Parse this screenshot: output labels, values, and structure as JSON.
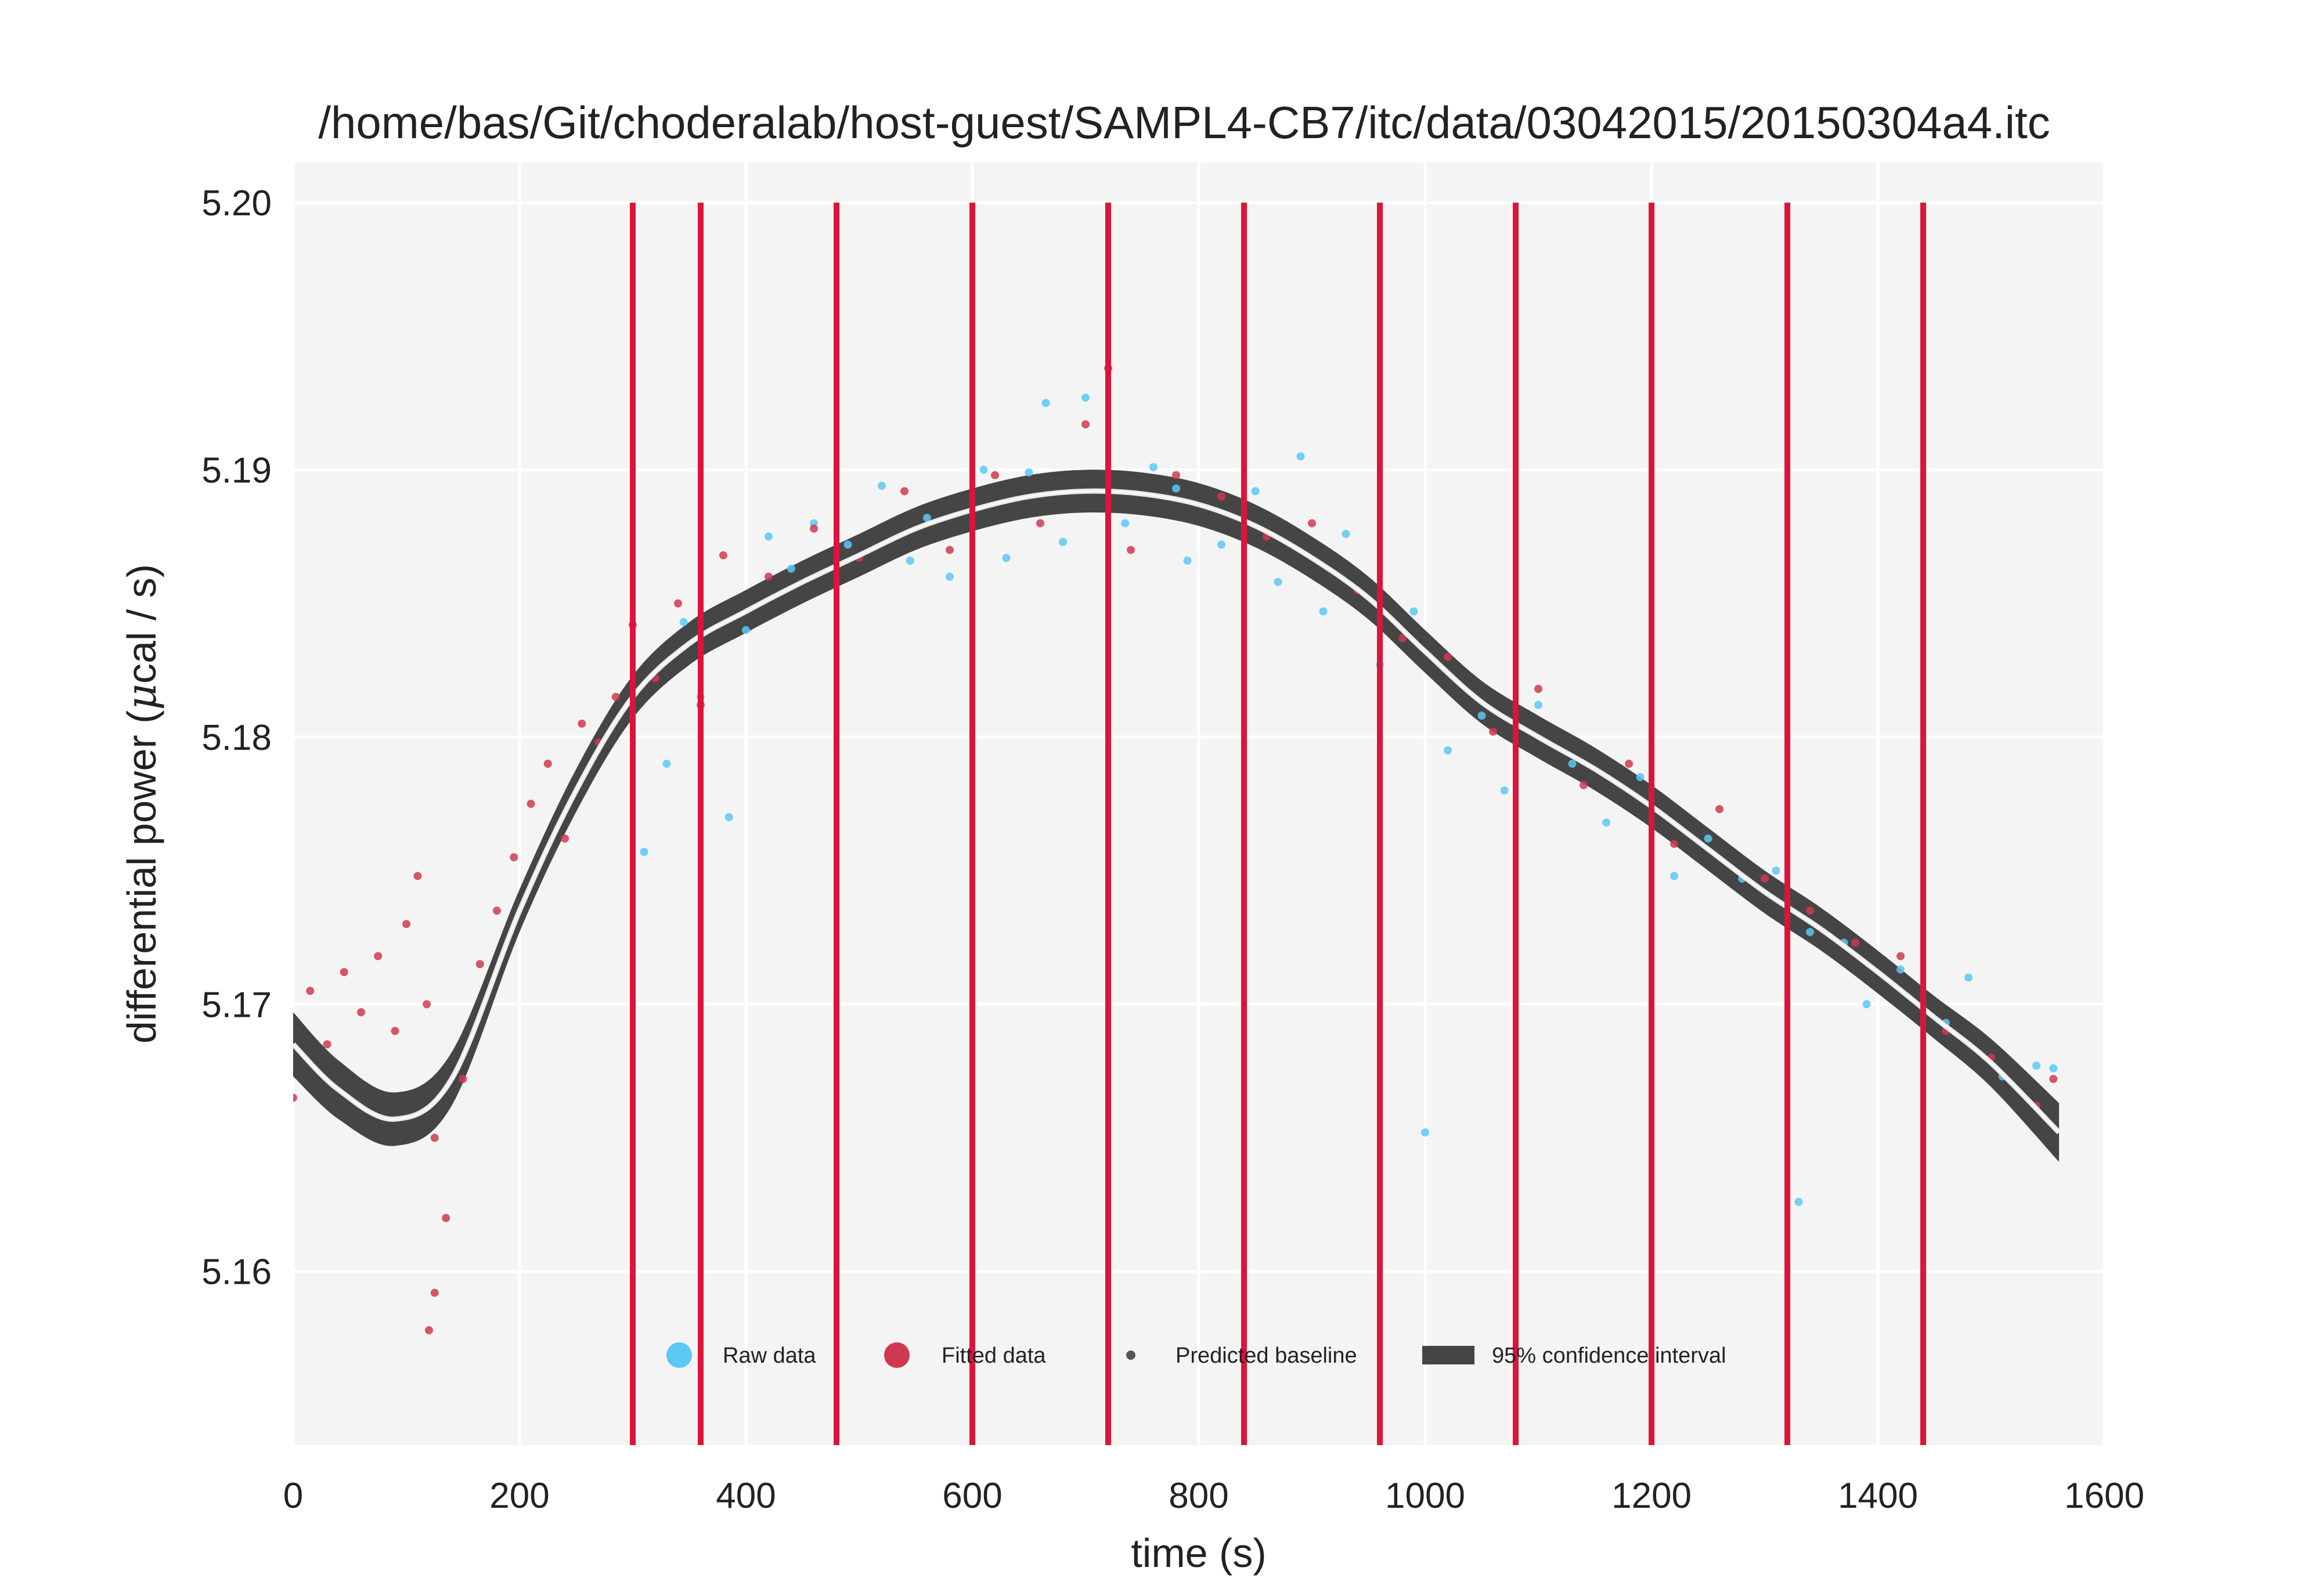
{
  "chart_data": {
    "type": "scatter",
    "title": "/home/bas/Git/choderalab/host-guest/SAMPL4-CB7/itc/data/03042015/20150304a4.itc",
    "xlabel": "time (s)",
    "ylabel_prefix": "differential power (",
    "ylabel_mu": "μ",
    "ylabel_suffix": "cal / s)",
    "xlim": [
      0,
      1600
    ],
    "ylim": [
      5.1535,
      5.2015
    ],
    "x_ticks": [
      "0",
      "200",
      "400",
      "600",
      "800",
      "1000",
      "1200",
      "1400",
      "1600"
    ],
    "y_ticks": [
      "5.16",
      "5.17",
      "5.18",
      "5.19",
      "5.20"
    ],
    "grid": true,
    "injection_times": [
      300,
      360,
      480,
      600,
      720,
      840,
      960,
      1080,
      1200,
      1320,
      1440
    ],
    "baseline": {
      "x": [
        0,
        40,
        90,
        140,
        200,
        250,
        300,
        350,
        400,
        450,
        500,
        550,
        600,
        650,
        700,
        750,
        800,
        850,
        900,
        950,
        1000,
        1050,
        1100,
        1150,
        1200,
        1250,
        1300,
        1350,
        1400,
        1450,
        1500,
        1560
      ],
      "y": [
        5.1685,
        5.1668,
        5.1657,
        5.1672,
        5.1735,
        5.178,
        5.1815,
        5.1835,
        5.1847,
        5.1858,
        5.1868,
        5.1878,
        5.1885,
        5.189,
        5.1892,
        5.1891,
        5.1887,
        5.1879,
        5.1867,
        5.1852,
        5.1832,
        5.1813,
        5.18,
        5.1788,
        5.1774,
        5.1758,
        5.1742,
        5.1728,
        5.1712,
        5.1695,
        5.1678,
        5.1652
      ],
      "ci_halfwidth": [
        0.0012,
        0.0011,
        0.001,
        0.001,
        0.0008,
        0.0008,
        0.0008,
        0.0008,
        0.0008,
        0.0008,
        0.0008,
        0.0008,
        0.0008,
        0.0008,
        0.0008,
        0.0008,
        0.0008,
        0.0008,
        0.0008,
        0.0008,
        0.0008,
        0.0008,
        0.0008,
        0.0008,
        0.0008,
        0.0008,
        0.0008,
        0.0008,
        0.0008,
        0.0008,
        0.0009,
        0.0011
      ]
    },
    "series": [
      {
        "name": "Raw data",
        "color": "#5bc8f5",
        "x": [
          310,
          330,
          345,
          360,
          385,
          400,
          420,
          440,
          460,
          490,
          520,
          545,
          560,
          580,
          610,
          630,
          650,
          665,
          680,
          700,
          735,
          760,
          780,
          790,
          820,
          850,
          870,
          890,
          910,
          930,
          960,
          990,
          1020,
          1050,
          1070,
          1100,
          1130,
          1160,
          1190,
          1220,
          1250,
          1280,
          1310,
          1340,
          1370,
          1390,
          1420,
          1460,
          1480,
          1510,
          1540,
          1555,
          1330,
          1000
        ],
        "y": [
          5.1757,
          5.179,
          5.1843,
          5.1815,
          5.177,
          5.184,
          5.1875,
          5.1863,
          5.188,
          5.1872,
          5.1894,
          5.1866,
          5.1882,
          5.186,
          5.19,
          5.1867,
          5.1899,
          5.1925,
          5.1873,
          5.1927,
          5.188,
          5.1901,
          5.1893,
          5.1866,
          5.1872,
          5.1892,
          5.1858,
          5.1905,
          5.1847,
          5.1876,
          5.1827,
          5.1847,
          5.1795,
          5.1808,
          5.178,
          5.1812,
          5.179,
          5.1768,
          5.1785,
          5.1748,
          5.1762,
          5.1747,
          5.175,
          5.1727,
          5.1723,
          5.17,
          5.1713,
          5.1693,
          5.171,
          5.1673,
          5.1677,
          5.1676,
          5.1626,
          5.1652
        ]
      },
      {
        "name": "Fitted data",
        "color": "#d0384f",
        "x": [
          0,
          15,
          30,
          45,
          60,
          75,
          90,
          100,
          110,
          118,
          125,
          135,
          150,
          165,
          180,
          195,
          210,
          225,
          240,
          255,
          270,
          285,
          300,
          320,
          340,
          360,
          380,
          420,
          460,
          500,
          540,
          580,
          620,
          660,
          700,
          720,
          740,
          780,
          820,
          860,
          900,
          940,
          980,
          1020,
          1060,
          1100,
          1140,
          1180,
          1220,
          1260,
          1300,
          1340,
          1380,
          1420,
          1460,
          1500,
          1540,
          1555,
          120,
          125
        ],
        "y": [
          5.1665,
          5.1705,
          5.1685,
          5.1712,
          5.1697,
          5.1718,
          5.169,
          5.173,
          5.1748,
          5.17,
          5.165,
          5.162,
          5.1672,
          5.1715,
          5.1735,
          5.1755,
          5.1775,
          5.179,
          5.1762,
          5.1805,
          5.1798,
          5.1815,
          5.1842,
          5.1822,
          5.185,
          5.1812,
          5.1868,
          5.186,
          5.1878,
          5.1867,
          5.1892,
          5.187,
          5.1898,
          5.188,
          5.1917,
          5.1938,
          5.187,
          5.1898,
          5.189,
          5.1875,
          5.188,
          5.1855,
          5.1837,
          5.183,
          5.1802,
          5.1818,
          5.1782,
          5.179,
          5.176,
          5.1773,
          5.1747,
          5.1735,
          5.1723,
          5.1718,
          5.169,
          5.168,
          5.1662,
          5.1672,
          5.1578,
          5.1592
        ]
      }
    ],
    "legend": {
      "position": "lower-center",
      "entries": [
        "Raw data",
        "Fitted data",
        "Predicted baseline",
        "95% confidence interval"
      ]
    },
    "colors": {
      "plot_background": "#f4f4f4",
      "grid": "#ffffff",
      "injection_line": "#dc143c",
      "confidence_band": "#454545",
      "baseline_line": "#eaeaea"
    }
  }
}
